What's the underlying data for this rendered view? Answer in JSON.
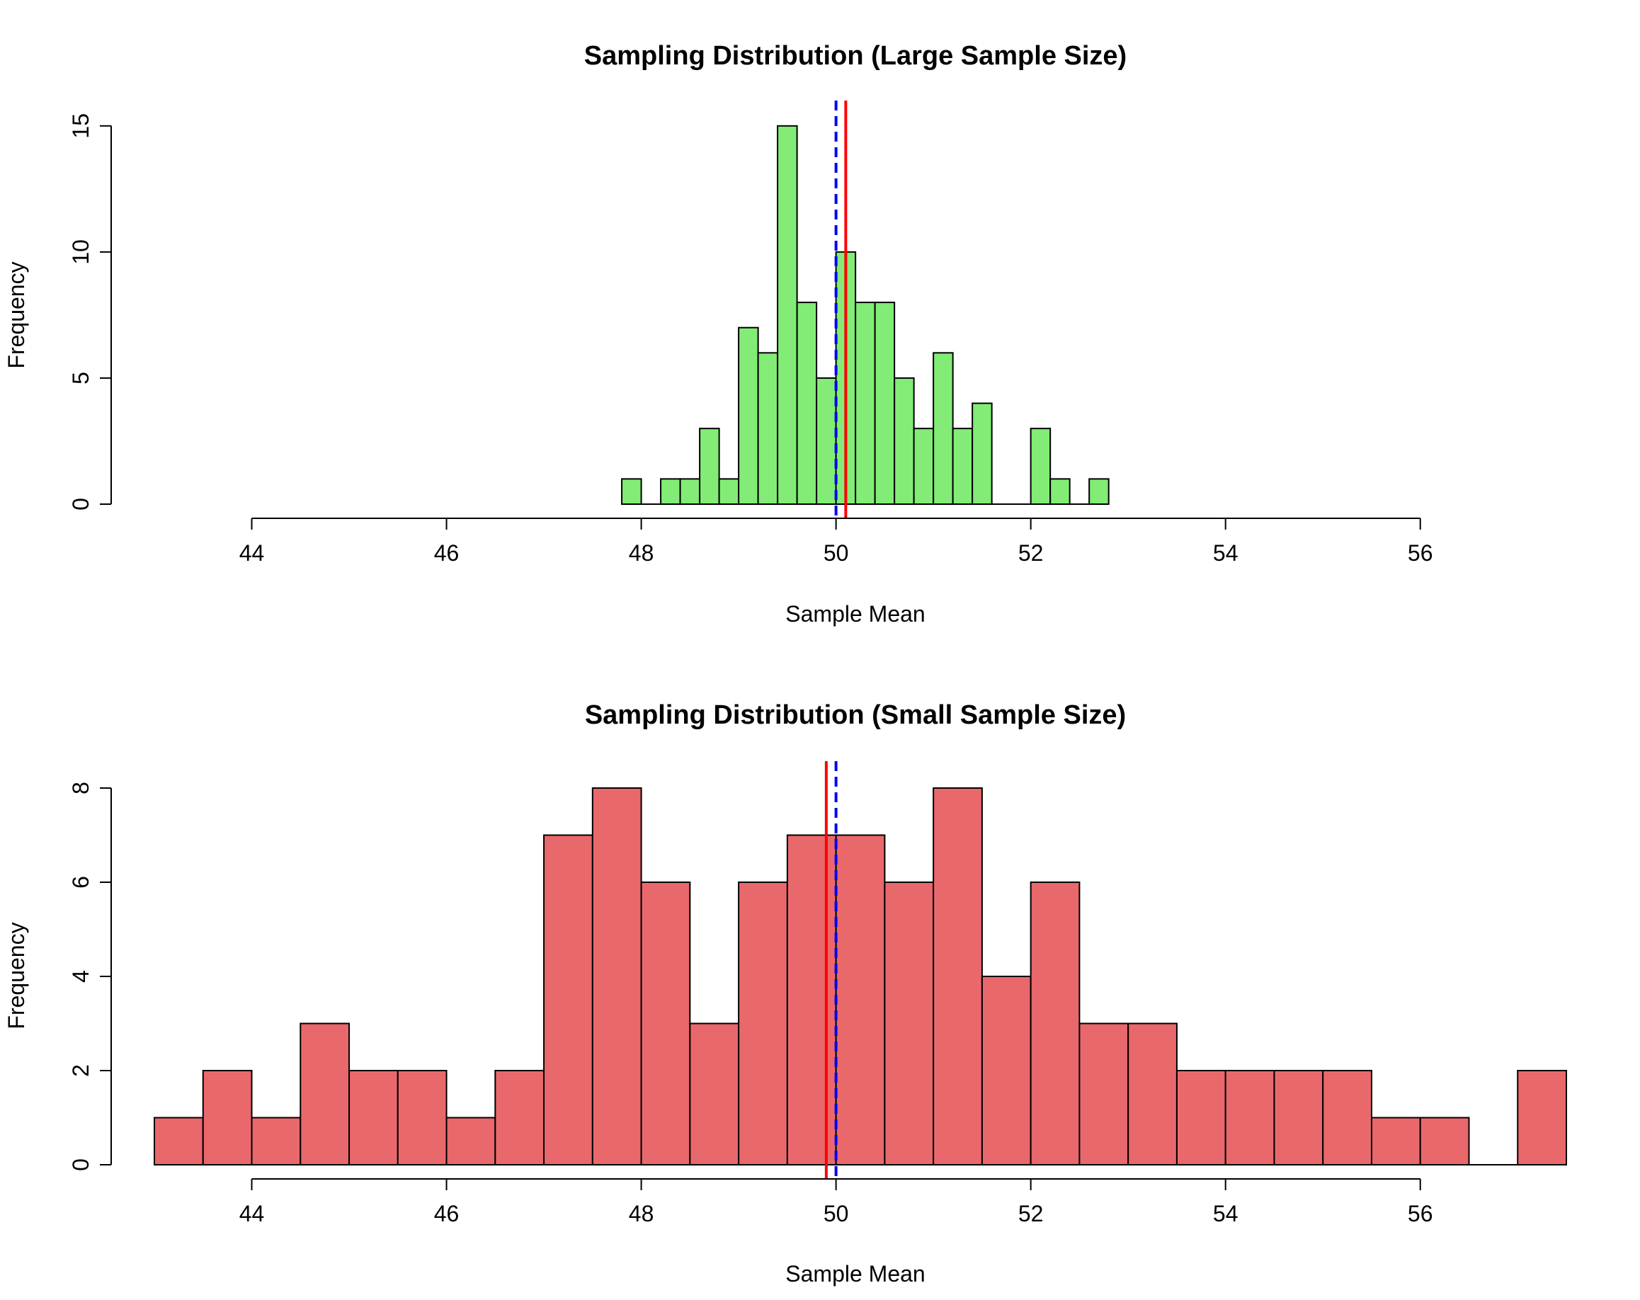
{
  "chart_data": [
    {
      "type": "histogram",
      "title": "Sampling Distribution (Large Sample Size)",
      "xlabel": "Sample Mean",
      "ylabel": "Frequency",
      "xlim": [
        43,
        57.5
      ],
      "ylim": [
        0,
        15.5
      ],
      "x_ticks": [
        44,
        46,
        48,
        50,
        52,
        54,
        56
      ],
      "y_ticks": [
        0,
        5,
        10,
        15
      ],
      "bin_width": 0.2,
      "bins": [
        {
          "start": 47.8,
          "end": 48.0,
          "count": 1
        },
        {
          "start": 48.0,
          "end": 48.2,
          "count": 0
        },
        {
          "start": 48.2,
          "end": 48.4,
          "count": 1
        },
        {
          "start": 48.4,
          "end": 48.6,
          "count": 1
        },
        {
          "start": 48.6,
          "end": 48.8,
          "count": 3
        },
        {
          "start": 48.8,
          "end": 49.0,
          "count": 1
        },
        {
          "start": 49.0,
          "end": 49.2,
          "count": 7
        },
        {
          "start": 49.2,
          "end": 49.4,
          "count": 6
        },
        {
          "start": 49.4,
          "end": 49.6,
          "count": 15
        },
        {
          "start": 49.6,
          "end": 49.8,
          "count": 8
        },
        {
          "start": 49.8,
          "end": 50.0,
          "count": 5
        },
        {
          "start": 50.0,
          "end": 50.2,
          "count": 10
        },
        {
          "start": 50.2,
          "end": 50.4,
          "count": 8
        },
        {
          "start": 50.4,
          "end": 50.6,
          "count": 8
        },
        {
          "start": 50.6,
          "end": 50.8,
          "count": 5
        },
        {
          "start": 50.8,
          "end": 51.0,
          "count": 3
        },
        {
          "start": 51.0,
          "end": 51.2,
          "count": 6
        },
        {
          "start": 51.2,
          "end": 51.4,
          "count": 3
        },
        {
          "start": 51.4,
          "end": 51.6,
          "count": 4
        },
        {
          "start": 51.6,
          "end": 51.8,
          "count": 0
        },
        {
          "start": 51.8,
          "end": 52.0,
          "count": 0
        },
        {
          "start": 52.0,
          "end": 52.2,
          "count": 3
        },
        {
          "start": 52.2,
          "end": 52.4,
          "count": 1
        },
        {
          "start": 52.4,
          "end": 52.6,
          "count": 0
        },
        {
          "start": 52.6,
          "end": 52.8,
          "count": 1
        }
      ],
      "bar_color": "#82EC76",
      "vlines": [
        {
          "x": 50.1,
          "color": "#FF0000",
          "style": "solid"
        },
        {
          "x": 50.0,
          "color": "#0000FF",
          "style": "dashed"
        }
      ]
    },
    {
      "type": "histogram",
      "title": "Sampling Distribution (Small Sample Size)",
      "xlabel": "Sample Mean",
      "ylabel": "Frequency",
      "xlim": [
        43,
        57.5
      ],
      "ylim": [
        0,
        8.3
      ],
      "x_ticks": [
        44,
        46,
        48,
        50,
        52,
        54,
        56
      ],
      "y_ticks": [
        0,
        2,
        4,
        6,
        8
      ],
      "bin_width": 0.5,
      "bins": [
        {
          "start": 43.0,
          "end": 43.5,
          "count": 1
        },
        {
          "start": 43.5,
          "end": 44.0,
          "count": 2
        },
        {
          "start": 44.0,
          "end": 44.5,
          "count": 1
        },
        {
          "start": 44.5,
          "end": 45.0,
          "count": 3
        },
        {
          "start": 45.0,
          "end": 45.5,
          "count": 2
        },
        {
          "start": 45.5,
          "end": 46.0,
          "count": 2
        },
        {
          "start": 46.0,
          "end": 46.5,
          "count": 1
        },
        {
          "start": 46.5,
          "end": 47.0,
          "count": 2
        },
        {
          "start": 47.0,
          "end": 47.5,
          "count": 7
        },
        {
          "start": 47.5,
          "end": 48.0,
          "count": 8
        },
        {
          "start": 48.0,
          "end": 48.5,
          "count": 6
        },
        {
          "start": 48.5,
          "end": 49.0,
          "count": 3
        },
        {
          "start": 49.0,
          "end": 49.5,
          "count": 6
        },
        {
          "start": 49.5,
          "end": 50.0,
          "count": 7
        },
        {
          "start": 50.0,
          "end": 50.5,
          "count": 7
        },
        {
          "start": 50.5,
          "end": 51.0,
          "count": 6
        },
        {
          "start": 51.0,
          "end": 51.5,
          "count": 8
        },
        {
          "start": 51.5,
          "end": 52.0,
          "count": 4
        },
        {
          "start": 52.0,
          "end": 52.5,
          "count": 6
        },
        {
          "start": 52.5,
          "end": 53.0,
          "count": 3
        },
        {
          "start": 53.0,
          "end": 53.5,
          "count": 3
        },
        {
          "start": 53.5,
          "end": 54.0,
          "count": 2
        },
        {
          "start": 54.0,
          "end": 54.5,
          "count": 2
        },
        {
          "start": 54.5,
          "end": 55.0,
          "count": 2
        },
        {
          "start": 55.0,
          "end": 55.5,
          "count": 2
        },
        {
          "start": 55.5,
          "end": 56.0,
          "count": 1
        },
        {
          "start": 56.0,
          "end": 56.5,
          "count": 1
        },
        {
          "start": 56.5,
          "end": 57.0,
          "count": 0
        },
        {
          "start": 57.0,
          "end": 57.5,
          "count": 2
        }
      ],
      "bar_color": "#E9686C",
      "vlines": [
        {
          "x": 49.9,
          "color": "#FF0000",
          "style": "solid"
        },
        {
          "x": 50.0,
          "color": "#0000FF",
          "style": "dashed"
        }
      ]
    }
  ]
}
